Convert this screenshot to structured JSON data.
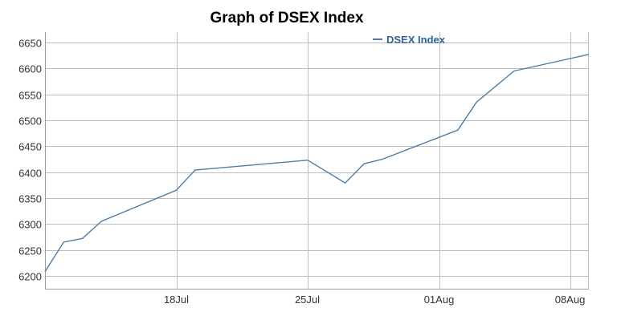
{
  "chart_data": {
    "type": "line",
    "title": "Graph of DSEX Index",
    "xlabel": "",
    "ylabel": "",
    "ylim": [
      6175,
      6670
    ],
    "yticks": [
      6200,
      6250,
      6300,
      6350,
      6400,
      6450,
      6500,
      6550,
      6600,
      6650
    ],
    "xlim": [
      "2019-07-11",
      "2019-08-08"
    ],
    "xticks": [
      {
        "date": "2019-07-18",
        "label": "18Jul"
      },
      {
        "date": "2019-07-25",
        "label": "25Jul"
      },
      {
        "date": "2019-08-01",
        "label": "01Aug"
      },
      {
        "date": "2019-08-08",
        "label": "08Aug"
      }
    ],
    "grid": true,
    "legend_position": "top-right",
    "series": [
      {
        "name": "DSEX Index",
        "color": "#4e7ea8",
        "points": [
          {
            "x": "2019-07-11",
            "y": 6208
          },
          {
            "x": "2019-07-12",
            "y": 6265
          },
          {
            "x": "2019-07-13",
            "y": 6272
          },
          {
            "x": "2019-07-14",
            "y": 6305
          },
          {
            "x": "2019-07-18",
            "y": 6365
          },
          {
            "x": "2019-07-19",
            "y": 6404
          },
          {
            "x": "2019-07-25",
            "y": 6423
          },
          {
            "x": "2019-07-27",
            "y": 6379
          },
          {
            "x": "2019-07-28",
            "y": 6416
          },
          {
            "x": "2019-07-29",
            "y": 6425
          },
          {
            "x": "2019-08-02",
            "y": 6481
          },
          {
            "x": "2019-08-03",
            "y": 6535
          },
          {
            "x": "2019-08-05",
            "y": 6595
          },
          {
            "x": "2019-08-09",
            "y": 6627
          }
        ]
      }
    ]
  },
  "colors": {
    "grid": "#bdbdbd",
    "axis": "#9e9e9e",
    "tick_text": "#333333",
    "title": "#000000",
    "legend_text": "#2f6496"
  }
}
